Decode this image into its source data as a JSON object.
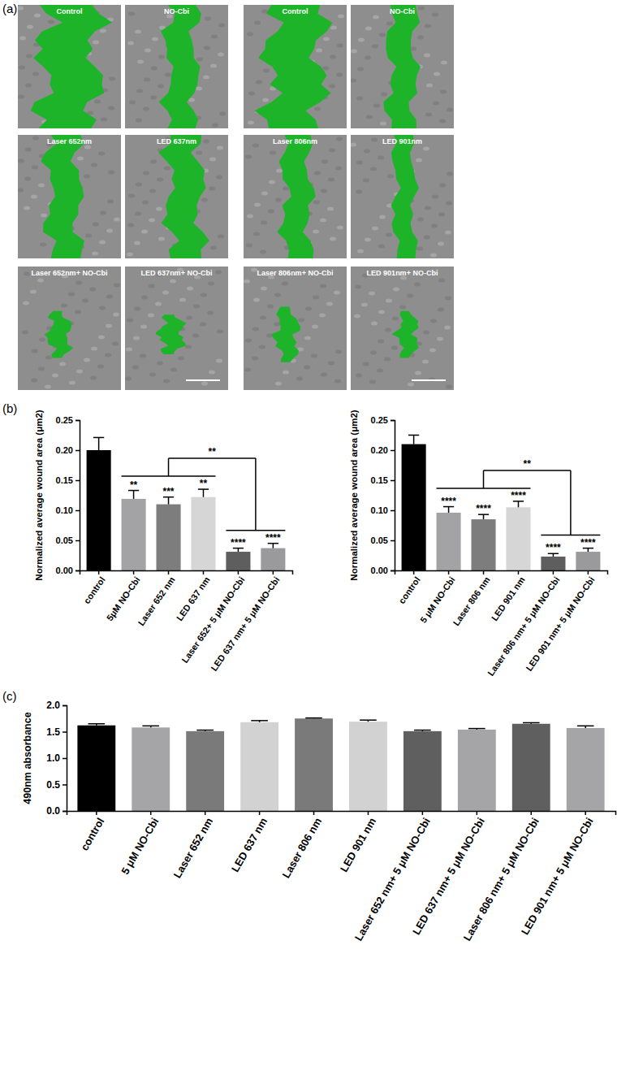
{
  "panel_labels": [
    "(a)",
    "(b)",
    "(c)"
  ],
  "micrographs": {
    "titles": [
      "Control",
      "NO-Cbi",
      "Laser 652nm",
      "LED 637nm",
      "Laser 652nm+ NO-Cbi",
      "LED 637nm+ NO-Cbi",
      "Control",
      "NO-Cbi",
      "Laser 806nm",
      "LED 901nm",
      "Laser 806nm+ NO-Cbi",
      "LED 901nm+ NO-Cbi"
    ]
  },
  "chart_data": [
    {
      "type": "bar",
      "y_label": "Normalized average wound area (μm2)",
      "categories": [
        "control",
        "5μM NO-Cbi",
        "Laser 652 nm",
        "LED 637 nm",
        "Laser 652+ 5 μM NO-Cbi",
        "LED 637 nm+ 5 μM NO-Cbi"
      ],
      "values": [
        0.2,
        0.119,
        0.11,
        0.122,
        0.031,
        0.037
      ],
      "errors": [
        0.021,
        0.014,
        0.012,
        0.013,
        0.006,
        0.008
      ],
      "colors": [
        "#000000",
        "#a3a3a5",
        "#7d7d7d",
        "#d6d6d6",
        "#5e5e5e",
        "#9a9a9c"
      ],
      "significance": [
        null,
        "**",
        "***",
        "**",
        "****",
        "****"
      ],
      "bracket": {
        "label": "**",
        "groups": [
          [
            1,
            2,
            3
          ],
          [
            4,
            5
          ]
        ]
      },
      "ylim": [
        0,
        0.25
      ],
      "yticks": [
        {
          "value": 0,
          "label": "0.00"
        },
        {
          "value": 0.05,
          "label": "0.05"
        },
        {
          "value": 0.1,
          "label": "0.10"
        },
        {
          "value": 0.15,
          "label": "0.15"
        },
        {
          "value": 0.2,
          "label": "0.20"
        },
        {
          "value": 0.25,
          "label": "0.25"
        }
      ],
      "grid": false
    },
    {
      "type": "bar",
      "y_label": "Normalized average wound area (μm2)",
      "categories": [
        "control",
        "5 μM NO-Cbi",
        "Laser 806 nm",
        "LED 901 nm",
        "Laser 806 nm+ 5 μM NO-Cbi",
        "LED 901 nm+ 5 μM NO-Cbi"
      ],
      "values": [
        0.21,
        0.096,
        0.085,
        0.105,
        0.023,
        0.031
      ],
      "errors": [
        0.015,
        0.01,
        0.008,
        0.01,
        0.005,
        0.006
      ],
      "colors": [
        "#000000",
        "#a3a3a5",
        "#7d7d7d",
        "#d6d6d6",
        "#5e5e5e",
        "#9a9a9c"
      ],
      "significance": [
        null,
        "****",
        "****",
        "****",
        "****",
        "****"
      ],
      "bracket": {
        "label": "**",
        "groups": [
          [
            1,
            2,
            3
          ],
          [
            4,
            5
          ]
        ]
      },
      "ylim": [
        0,
        0.25
      ],
      "yticks": [
        {
          "value": 0,
          "label": "0.00"
        },
        {
          "value": 0.05,
          "label": "0.05"
        },
        {
          "value": 0.1,
          "label": "0.10"
        },
        {
          "value": 0.15,
          "label": "0.15"
        },
        {
          "value": 0.2,
          "label": "0.20"
        },
        {
          "value": 0.25,
          "label": "0.25"
        }
      ],
      "grid": false
    },
    {
      "type": "bar",
      "y_label": "490nm absorbance",
      "categories": [
        "control",
        "5 μM NO-Cbi",
        "Laser 652 nm",
        "LED 637 nm",
        "Laser 806 nm",
        "LED 901 nm",
        "Laser 652 nm+ 5 μM NO-Cbi",
        "LED 637 nm+ 5 μM NO-Cbi",
        "Laser 806 nm+ 5 μM NO-Cbi",
        "LED 901 nm+ 5 μM NO-Cbi"
      ],
      "values": [
        1.62,
        1.58,
        1.51,
        1.68,
        1.75,
        1.69,
        1.51,
        1.54,
        1.65,
        1.57
      ],
      "errors": [
        0.03,
        0.03,
        0.02,
        0.03,
        0.01,
        0.03,
        0.02,
        0.02,
        0.02,
        0.04
      ],
      "colors": [
        "#000000",
        "#a5a5a7",
        "#7a7a7a",
        "#d2d2d2",
        "#7a7a7a",
        "#d2d2d2",
        "#5f5f5f",
        "#a5a5a7",
        "#5f5f5f",
        "#a5a5a7"
      ],
      "ylim": [
        0,
        2.0
      ],
      "yticks": [
        {
          "value": 0,
          "label": "0.0"
        },
        {
          "value": 0.5,
          "label": "0.5"
        },
        {
          "value": 1.0,
          "label": "1.0"
        },
        {
          "value": 1.5,
          "label": "1.5"
        },
        {
          "value": 2.0,
          "label": "2.0"
        }
      ],
      "grid": false
    }
  ]
}
